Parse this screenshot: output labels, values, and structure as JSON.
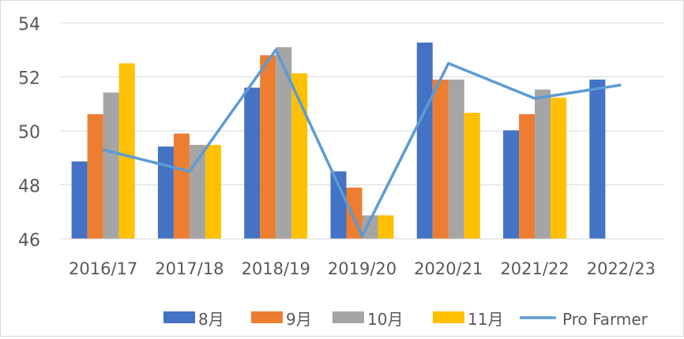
{
  "chart_data": {
    "type": "bar",
    "title": "",
    "xlabel": "",
    "ylabel": "",
    "ylim": [
      46,
      54
    ],
    "yticks": [
      46,
      48,
      50,
      52,
      54
    ],
    "grid": true,
    "legend_position": "bottom",
    "categories": [
      "2016/17",
      "2017/18",
      "2018/19",
      "2019/20",
      "2020/21",
      "2021/22",
      "2022/23"
    ],
    "series": [
      {
        "name": "8月",
        "type": "bar",
        "color": "#4472C4",
        "values": [
          48.87,
          49.42,
          51.6,
          48.5,
          53.27,
          50.02,
          51.9
        ]
      },
      {
        "name": "9月",
        "type": "bar",
        "color": "#ED7D31",
        "values": [
          50.62,
          49.9,
          52.8,
          47.9,
          51.9,
          50.62,
          null
        ]
      },
      {
        "name": "10月",
        "type": "bar",
        "color": "#A5A5A5",
        "values": [
          51.42,
          49.48,
          53.1,
          46.87,
          51.9,
          51.53,
          null
        ]
      },
      {
        "name": "11月",
        "type": "bar",
        "color": "#FFC000",
        "values": [
          52.5,
          49.48,
          52.13,
          46.87,
          50.67,
          51.23,
          null
        ]
      },
      {
        "name": "Pro Farmer",
        "type": "line",
        "color": "#5B9BD5",
        "values": [
          49.3,
          48.5,
          53.0,
          46.1,
          52.5,
          51.2,
          51.7
        ]
      }
    ]
  }
}
